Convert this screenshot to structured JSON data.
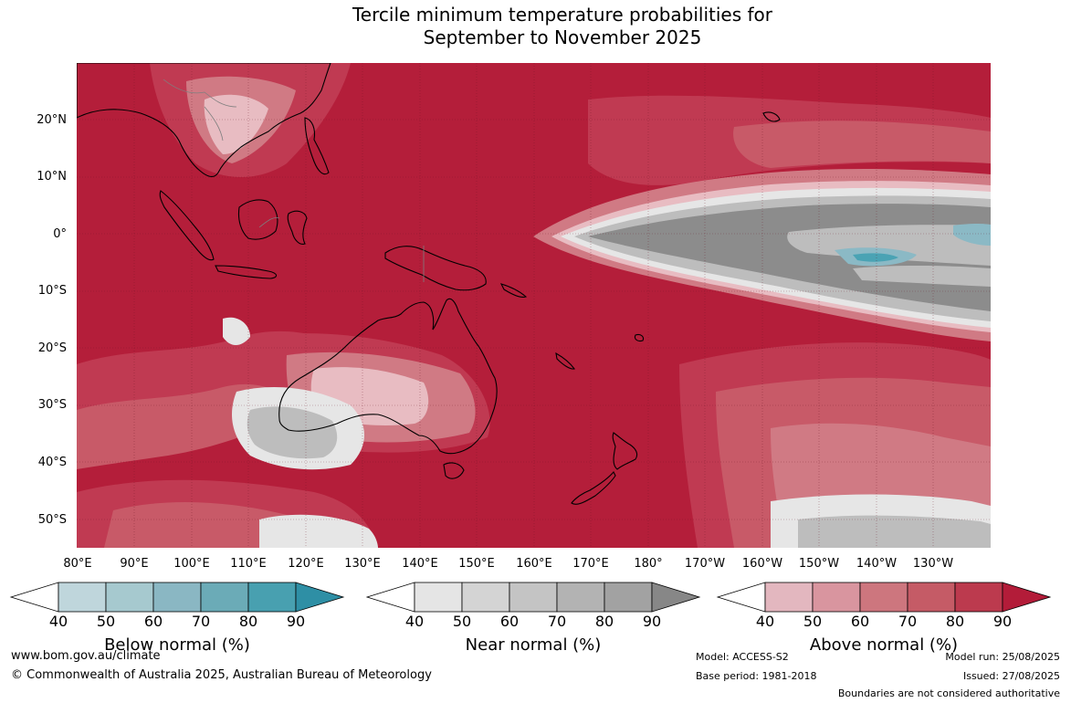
{
  "title": {
    "line1": "Tercile minimum temperature probabilities for",
    "line2": "September to November 2025"
  },
  "map": {
    "lat_labels": [
      "20°N",
      "10°N",
      "0°",
      "10°S",
      "20°S",
      "30°S",
      "40°S",
      "50°S"
    ],
    "lon_labels": [
      "80°E",
      "90°E",
      "100°E",
      "110°E",
      "120°E",
      "130°E",
      "140°E",
      "150°E",
      "160°E",
      "170°E",
      "180°",
      "170°W",
      "160°W",
      "150°W",
      "140°W",
      "130°W"
    ],
    "colors": {
      "above_90": "#b41e3a",
      "above_80": "#c03a52",
      "above_70": "#c85a68",
      "above_60": "#d07a84",
      "above_50": "#dc9ea6",
      "above_40": "#e8bcc2",
      "near_light": "#e6e6e6",
      "near_mid": "#bdbdbd",
      "near_dark": "#8c8c8c",
      "below_mid": "#8bb9c5",
      "below_dark": "#4aa3b4",
      "coast": "#000000",
      "borders": "#7f7f7f"
    }
  },
  "colorbars": [
    {
      "label": "Below normal (%)",
      "ticks": [
        "40",
        "50",
        "60",
        "70",
        "80",
        "90"
      ],
      "colors": [
        "#ffffff",
        "#bfd6dc",
        "#a6c9cf",
        "#8ab7c3",
        "#6babb7",
        "#48a0b0",
        "#2e8fa5"
      ]
    },
    {
      "label": "Near normal (%)",
      "ticks": [
        "40",
        "50",
        "60",
        "70",
        "80",
        "90"
      ],
      "colors": [
        "#ffffff",
        "#e5e5e5",
        "#d4d4d4",
        "#c4c4c4",
        "#b3b3b3",
        "#a2a2a2",
        "#878787"
      ]
    },
    {
      "label": "Above normal (%)",
      "ticks": [
        "40",
        "50",
        "60",
        "70",
        "80",
        "90"
      ],
      "colors": [
        "#ffffff",
        "#e3b7bf",
        "#d9959f",
        "#cd767e",
        "#c55b66",
        "#bc3a4e",
        "#b31c39"
      ]
    }
  ],
  "footer": {
    "website": "www.bom.gov.au/climate",
    "copyright": "© Commonwealth of Australia 2025, Australian Bureau of Meteorology",
    "model": "Model: ACCESS-S2",
    "base_period": "Base period: 1981-2018",
    "model_run": "Model run: 25/08/2025",
    "issued": "Issued: 27/08/2025",
    "boundaries": "Boundaries are not considered authoritative"
  }
}
